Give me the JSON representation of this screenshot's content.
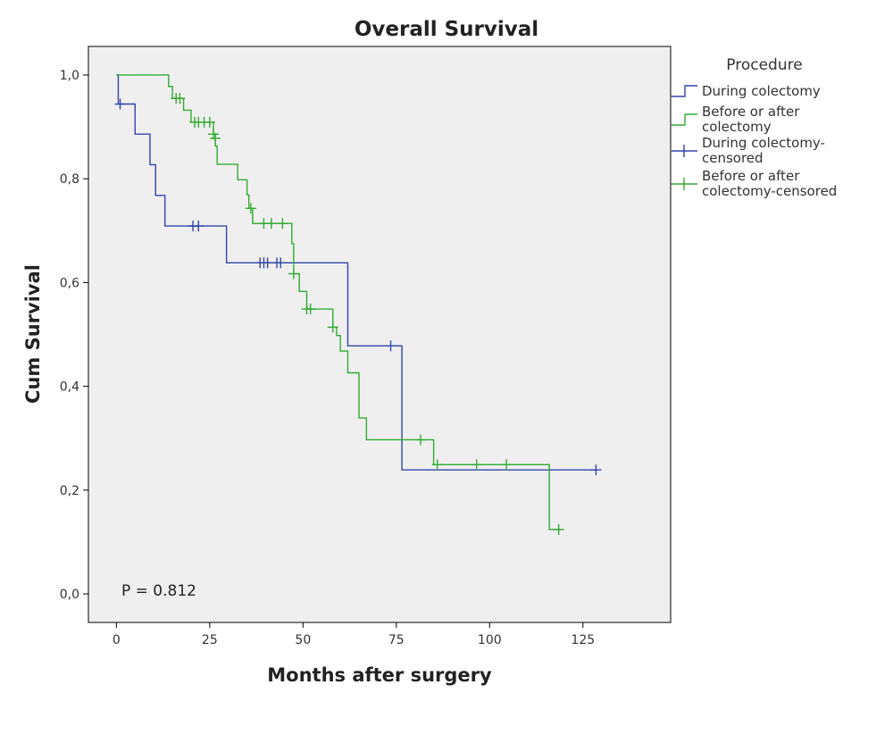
{
  "chart_data": {
    "type": "line",
    "title": "Overall Survival",
    "xlabel": "Months after surgery",
    "ylabel": "Cum Survival",
    "xlim": [
      -7.5,
      148.5
    ],
    "ylim": [
      -0.055,
      1.055
    ],
    "x_ticks": [
      0,
      25,
      50,
      75,
      100,
      125
    ],
    "x_tick_labels": [
      "0",
      "25",
      "50",
      "75",
      "100",
      "125"
    ],
    "y_ticks": [
      0,
      0.2,
      0.4,
      0.6,
      0.8,
      1.0
    ],
    "y_tick_labels": [
      "0,0",
      "0,2",
      "0,4",
      "0,6",
      "0,8",
      "1,0"
    ],
    "grid": false,
    "plot_background": "#efefef",
    "legend": {
      "title": "Procedure",
      "position": "right",
      "entries": [
        {
          "key": "during",
          "kind": "line",
          "lines": [
            "During colectomy"
          ],
          "color": "#3344aa"
        },
        {
          "key": "before",
          "kind": "line",
          "lines": [
            "Before or after",
            "colectomy"
          ],
          "color": "#33aa33"
        },
        {
          "key": "during",
          "kind": "censor",
          "lines": [
            "During colectomy-",
            "censored"
          ],
          "color": "#3344aa"
        },
        {
          "key": "before",
          "kind": "censor",
          "lines": [
            "Before or after",
            "colectomy-censored"
          ],
          "color": "#33aa33"
        }
      ]
    },
    "annotation": "P = 0.812",
    "series": [
      {
        "key": "during",
        "color": "#3344aa",
        "steps": [
          [
            0,
            1.0
          ],
          [
            0.5,
            0.944
          ],
          [
            5,
            0.886
          ],
          [
            9,
            0.827
          ],
          [
            10.5,
            0.768
          ],
          [
            13,
            0.709
          ],
          [
            29.5,
            0.638
          ],
          [
            62,
            0.478
          ],
          [
            76.5,
            0.239
          ],
          [
            129,
            0.239
          ]
        ],
        "censored": [
          [
            1,
            0.944
          ],
          [
            20.5,
            0.709
          ],
          [
            22,
            0.709
          ],
          [
            38.5,
            0.638
          ],
          [
            39.5,
            0.638
          ],
          [
            40.5,
            0.638
          ],
          [
            43,
            0.638
          ],
          [
            44,
            0.638
          ],
          [
            73.5,
            0.478
          ],
          [
            128.5,
            0.239
          ]
        ]
      },
      {
        "key": "before",
        "color": "#33aa33",
        "steps": [
          [
            0,
            1.0
          ],
          [
            14,
            0.978
          ],
          [
            15,
            0.955
          ],
          [
            18,
            0.932
          ],
          [
            20,
            0.909
          ],
          [
            26,
            0.886
          ],
          [
            26.5,
            0.863
          ],
          [
            27,
            0.828
          ],
          [
            32.5,
            0.798
          ],
          [
            35,
            0.769
          ],
          [
            35.5,
            0.743
          ],
          [
            36.5,
            0.714
          ],
          [
            47,
            0.675
          ],
          [
            47.5,
            0.617
          ],
          [
            49,
            0.583
          ],
          [
            51,
            0.549
          ],
          [
            58,
            0.514
          ],
          [
            59,
            0.498
          ],
          [
            60,
            0.468
          ],
          [
            62,
            0.426
          ],
          [
            65,
            0.339
          ],
          [
            67,
            0.297
          ],
          [
            85,
            0.249
          ],
          [
            116,
            0.124
          ],
          [
            119,
            0.124
          ]
        ],
        "censored": [
          [
            16,
            0.955
          ],
          [
            17,
            0.955
          ],
          [
            21,
            0.909
          ],
          [
            22,
            0.909
          ],
          [
            23.5,
            0.909
          ],
          [
            25,
            0.909
          ],
          [
            26,
            0.886
          ],
          [
            26.5,
            0.878
          ],
          [
            36,
            0.743
          ],
          [
            39.5,
            0.714
          ],
          [
            41.5,
            0.714
          ],
          [
            44.5,
            0.714
          ],
          [
            47.5,
            0.617
          ],
          [
            51,
            0.549
          ],
          [
            52,
            0.549
          ],
          [
            58,
            0.514
          ],
          [
            81.5,
            0.297
          ],
          [
            86,
            0.249
          ],
          [
            96.5,
            0.249
          ],
          [
            104.5,
            0.249
          ],
          [
            118.5,
            0.124
          ]
        ]
      }
    ]
  }
}
